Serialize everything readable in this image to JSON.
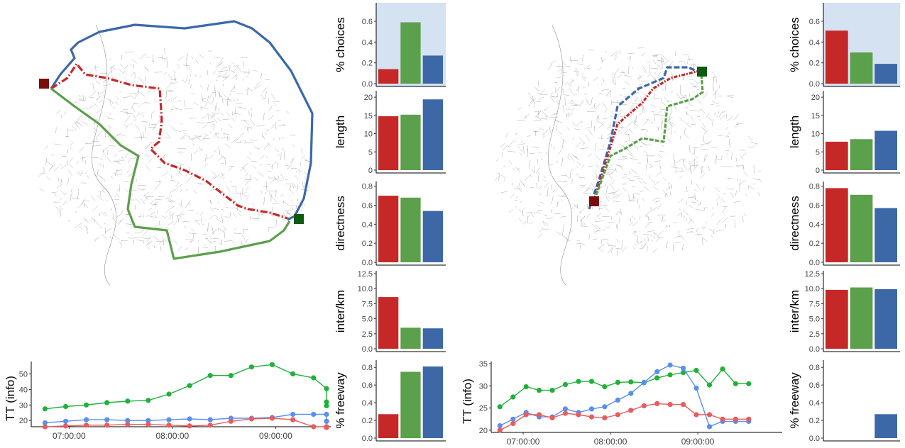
{
  "colors": {
    "red": "#c62828",
    "green": "#5ba04b",
    "blue": "#3c68a8",
    "tt_red": "#e85c5c",
    "tt_green": "#1fb13a",
    "tt_blue": "#5a8ff0",
    "highlight": "#d4e2f1",
    "origin": "#7a0c0c",
    "destination": "#0f5a12",
    "road": "#8f8f8f"
  },
  "panels": [
    {
      "name": "left",
      "bar_charts": [
        {
          "ylabel": "% choices",
          "highlighted": true,
          "ticks": [
            "0.0",
            "0.2",
            "0.4",
            "0.6"
          ],
          "ylim": [
            0,
            0.75
          ],
          "values": [
            0.14,
            0.59,
            0.27
          ]
        },
        {
          "ylabel": "length",
          "ticks": [
            "0",
            "5",
            "10",
            "15",
            "20"
          ],
          "ylim": [
            0,
            21
          ],
          "values": [
            14.8,
            15.2,
            19.4
          ]
        },
        {
          "ylabel": "directness",
          "ticks": [
            "0.0",
            "0.2",
            "0.4",
            "0.6",
            "0.8"
          ],
          "ylim": [
            0,
            0.82
          ],
          "values": [
            0.7,
            0.68,
            0.54
          ]
        },
        {
          "ylabel": "inter/km",
          "ticks": [
            "0.0",
            "2.5",
            "5.0",
            "7.5",
            "10.0",
            "12.5"
          ],
          "ylim": [
            0,
            12.5
          ],
          "values": [
            8.6,
            3.5,
            3.4
          ]
        },
        {
          "ylabel": "% freeway",
          "ticks": [
            "0.0",
            "0.2",
            "0.4",
            "0.6",
            "0.8"
          ],
          "ylim": [
            0,
            0.85
          ],
          "values": [
            0.27,
            0.75,
            0.81
          ]
        }
      ],
      "tt": {
        "ylabel": "TT (info)",
        "yticks": [
          "20",
          "30",
          "40",
          "50"
        ],
        "ylim": [
          16,
          58
        ],
        "xticks": [
          "07:00:00",
          "08:00:00",
          "09:00:00"
        ],
        "xtick_minutes": [
          420,
          480,
          540
        ],
        "xlim": [
          398,
          572
        ],
        "x": [
          406,
          418,
          430,
          442,
          454,
          466,
          478,
          490,
          502,
          514,
          526,
          538,
          550,
          562
        ],
        "series": [
          {
            "color_key": "tt_green",
            "values": [
              27.5,
              29,
              30,
              31.5,
              32.5,
              33,
              37,
              42.5,
              49,
              49,
              54.5,
              56,
              50,
              47.5
            ]
          },
          {
            "color_key": "tt_blue",
            "values": [
              18.5,
              19.5,
              20.5,
              20.5,
              20,
              20,
              20.5,
              21,
              20.5,
              21.5,
              21.5,
              22,
              24,
              24
            ]
          },
          {
            "color_key": "tt_red",
            "values": [
              16,
              16.5,
              17,
              17,
              17.5,
              17.5,
              17,
              16.5,
              17,
              19.5,
              21,
              21.5,
              20.5,
              16
            ]
          }
        ],
        "series_tail": [
          {
            "color_key": "tt_green",
            "x": [
              574,
              586,
              598
            ],
            "values": [
              40.5,
              32,
              29.5
            ]
          },
          {
            "color_key": "tt_blue",
            "x": [
              574,
              586,
              598
            ],
            "values": [
              24,
              19.5,
              19.5
            ]
          },
          {
            "color_key": "tt_red",
            "x": [
              574,
              586,
              598
            ],
            "values": [
              16,
              15.5,
              16
            ]
          }
        ]
      }
    },
    {
      "name": "right",
      "bar_charts": [
        {
          "ylabel": "% choices",
          "highlighted": true,
          "ticks": [
            "0.0",
            "0.2",
            "0.4",
            "0.6"
          ],
          "ylim": [
            0,
            0.75
          ],
          "values": [
            0.51,
            0.3,
            0.19
          ]
        },
        {
          "ylabel": "length",
          "ticks": [
            "0",
            "5",
            "10",
            "15",
            "20"
          ],
          "ylim": [
            0,
            21
          ],
          "values": [
            7.8,
            8.5,
            10.8
          ]
        },
        {
          "ylabel": "directness",
          "ticks": [
            "0.0",
            "0.2",
            "0.4",
            "0.6",
            "0.8"
          ],
          "ylim": [
            0,
            0.82
          ],
          "values": [
            0.78,
            0.71,
            0.57
          ]
        },
        {
          "ylabel": "inter/km",
          "ticks": [
            "0.0",
            "2.5",
            "5.0",
            "7.5",
            "10.0",
            "12.5"
          ],
          "ylim": [
            0,
            12.5
          ],
          "values": [
            9.8,
            10.2,
            9.9
          ]
        },
        {
          "ylabel": "% freeway",
          "ticks": [
            "0.0",
            "0.2",
            "0.4",
            "0.6",
            "0.8"
          ],
          "ylim": [
            0,
            0.85
          ],
          "values": [
            0.0,
            0.0,
            0.27
          ]
        }
      ],
      "tt": {
        "ylabel": "TT (info)",
        "yticks": [
          "20",
          "25",
          "30",
          "35"
        ],
        "ylim": [
          19.5,
          35.5
        ],
        "xticks": [
          "07:00:00",
          "08:00:00",
          "09:00:00"
        ],
        "xtick_minutes": [
          420,
          480,
          540
        ],
        "xlim": [
          398,
          598
        ],
        "x": [
          404,
          413,
          422,
          431,
          440,
          449,
          458,
          467,
          476,
          485,
          494,
          503,
          512,
          521,
          530,
          539,
          548,
          557,
          566,
          575
        ],
        "series": [
          {
            "color_key": "tt_green",
            "values": [
              25.3,
              27.5,
              29.8,
              29.0,
              29.0,
              30.3,
              31.0,
              31.0,
              29.8,
              30.8,
              30.9,
              30.7,
              31.8,
              32.5,
              33.0,
              33.5,
              30.2,
              33.8,
              30.5,
              30.5
            ]
          },
          {
            "color_key": "tt_blue",
            "values": [
              21.0,
              22.5,
              24.0,
              23.0,
              23.0,
              24.8,
              24.0,
              24.8,
              25.3,
              26.8,
              28.3,
              30.8,
              33.2,
              34.7,
              34.0,
              29.5,
              20.8,
              22.0,
              22.0,
              22.0
            ]
          },
          {
            "color_key": "tt_red",
            "values": [
              20.0,
              21.5,
              23.5,
              23.5,
              22.8,
              23.8,
              23.5,
              23.0,
              22.8,
              23.5,
              24.5,
              25.5,
              26.0,
              25.8,
              25.8,
              23.5,
              23.5,
              22.5,
              22.5,
              22.5
            ]
          }
        ]
      }
    }
  ]
}
